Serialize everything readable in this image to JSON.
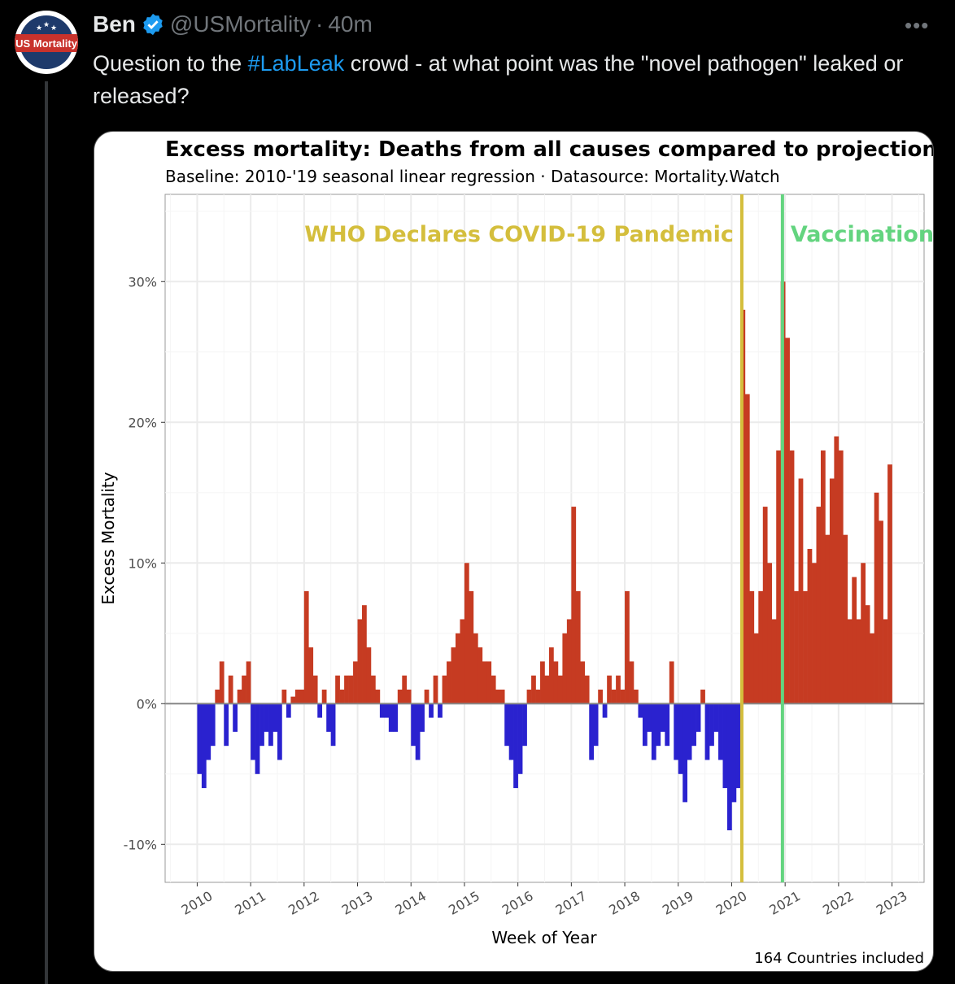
{
  "tweet": {
    "author_name": "Ben",
    "handle": "@USMortality",
    "separator": "·",
    "time": "40m",
    "avatar_text": "US Mortality",
    "more_label": "•••",
    "text_before": "Question to the ",
    "hashtag": "#LabLeak",
    "text_after": " crowd - at what point was the \"novel pathogen\" leaked or released?"
  },
  "colors": {
    "positive": "#C63B22",
    "negative": "#2A22CF",
    "who_line": "#D4BE3C",
    "vax_line": "#63D47F",
    "link": "#1d9bf0"
  },
  "chart_data": {
    "type": "bar",
    "title": "Excess mortality: Deaths from all causes compared to projection",
    "subtitle": "Baseline: 2010-'19 seasonal linear regression · Datasource: Mortality.Watch",
    "xlabel": "Week of Year",
    "ylabel": "Excess Mortality",
    "caption": "164 Countries included",
    "x_start": 2010,
    "x_end": 2023,
    "xlim": [
      2009.4,
      2023.6
    ],
    "ylim": [
      -12.7,
      36.2
    ],
    "x_ticks": [
      "2010",
      "2011",
      "2012",
      "2013",
      "2014",
      "2015",
      "2016",
      "2017",
      "2018",
      "2019",
      "2020",
      "2021",
      "2022",
      "2023"
    ],
    "y_ticks": [
      {
        "value": 30,
        "label": "30%"
      },
      {
        "value": 20,
        "label": "20%"
      },
      {
        "value": 10,
        "label": "10%"
      },
      {
        "value": 0,
        "label": "0%"
      },
      {
        "value": -10,
        "label": "-10%"
      }
    ],
    "resolution": "monthly (approximated from weekly bars)",
    "values": [
      -5,
      -6,
      -4,
      -3,
      1,
      3,
      -3,
      2,
      -2,
      1,
      2,
      3,
      -4,
      -5,
      -3,
      -2,
      -3,
      -2,
      -4,
      1,
      -1,
      0.5,
      1,
      1,
      8,
      4,
      2,
      -1,
      1,
      -2,
      -3,
      2,
      1,
      2,
      2,
      3,
      6,
      7,
      4,
      2,
      1,
      -1,
      -1,
      -2,
      -2,
      1,
      2,
      1,
      -3,
      -4,
      -2,
      1,
      -1,
      2,
      -1,
      2,
      3,
      4,
      5,
      6,
      10,
      8,
      5,
      4,
      3,
      3,
      2,
      1,
      1,
      -3,
      -4,
      -6,
      -5,
      -3,
      1,
      2,
      1,
      3,
      2,
      4,
      3,
      2,
      5,
      6,
      14,
      8,
      3,
      2,
      -4,
      -3,
      1,
      -1,
      2,
      1,
      2,
      1,
      8,
      3,
      1,
      -1,
      -3,
      -2,
      -4,
      -3,
      -2,
      -3,
      3,
      -4,
      -5,
      -7,
      -4,
      -3,
      -2,
      1,
      -4,
      -3,
      -2,
      -4,
      -6,
      -9,
      -7,
      -6,
      28,
      22,
      8,
      5,
      8,
      14,
      10,
      6,
      18,
      30,
      26,
      18,
      8,
      16,
      8,
      11,
      10,
      14,
      18,
      12,
      16,
      19,
      18,
      12,
      6,
      9,
      6,
      10,
      7,
      5,
      15,
      13,
      6,
      17
    ],
    "annotations": [
      {
        "label": "WHO Declares COVID-19 Pandemic",
        "x": 2020.19,
        "color": "#D4BE3C"
      },
      {
        "label": "Vaccination",
        "x": 2020.95,
        "color": "#63D47F"
      }
    ]
  }
}
